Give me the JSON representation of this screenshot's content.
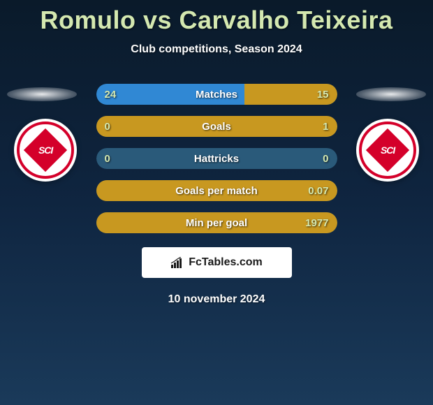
{
  "title": "Romulo vs Carvalho Teixeira",
  "subtitle": "Club competitions, Season 2024",
  "date": "10 november 2024",
  "footer_brand": "FcTables.com",
  "colors": {
    "title_color": "#d4e8b0",
    "value_color": "#d4e8b0",
    "text_color": "#ffffff",
    "bar_left": "#3088d4",
    "bar_right": "#c89820",
    "bar_bg": "#2a5a7a",
    "club_red": "#d4002a"
  },
  "club_left": {
    "abbrev": "SCI"
  },
  "club_right": {
    "abbrev": "SCI"
  },
  "stats": [
    {
      "label": "Matches",
      "left_value": "24",
      "right_value": "15",
      "left_pct": 61.5,
      "right_pct": 38.5,
      "left_num": 24,
      "right_num": 15
    },
    {
      "label": "Goals",
      "left_value": "0",
      "right_value": "1",
      "left_pct": 0,
      "right_pct": 100,
      "left_num": 0,
      "right_num": 1
    },
    {
      "label": "Hattricks",
      "left_value": "0",
      "right_value": "0",
      "left_pct": 0,
      "right_pct": 0,
      "left_num": 0,
      "right_num": 0
    },
    {
      "label": "Goals per match",
      "left_value": "",
      "right_value": "0.07",
      "left_pct": 0,
      "right_pct": 100,
      "left_num": 0,
      "right_num": 0.07
    },
    {
      "label": "Min per goal",
      "left_value": "",
      "right_value": "1977",
      "left_pct": 0,
      "right_pct": 100,
      "left_num": 0,
      "right_num": 1977
    }
  ]
}
